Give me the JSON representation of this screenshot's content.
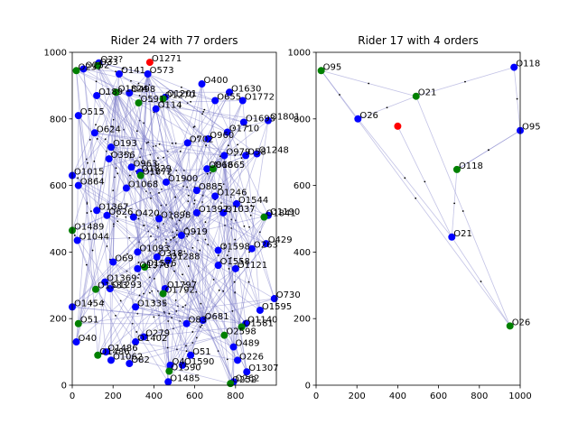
{
  "colors": {
    "route": "#7b7bc8",
    "order": "#0000ff",
    "drop": "#008000",
    "rider": "#ff0000",
    "axis": "#000000"
  },
  "chart_data": [
    {
      "type": "scatter",
      "title": "Rider 24 with 77 orders",
      "xlim": [
        0,
        1000
      ],
      "ylim": [
        0,
        1000
      ],
      "xticks": [
        "0",
        "200",
        "400",
        "600",
        "800"
      ],
      "yticks": [
        "0",
        "200",
        "400",
        "600",
        "800",
        "1000"
      ],
      "rider": {
        "x": 380,
        "y": 970,
        "label": "O1271"
      },
      "points": [
        {
          "x": 130,
          "y": 968,
          "label": "O2??"
        },
        {
          "x": 55,
          "y": 950,
          "label": "O252"
        },
        {
          "x": 230,
          "y": 935,
          "label": "O141"
        },
        {
          "x": 370,
          "y": 935,
          "label": "O573"
        },
        {
          "x": 120,
          "y": 870,
          "label": "O189"
        },
        {
          "x": 280,
          "y": 878,
          "label": "O498"
        },
        {
          "x": 455,
          "y": 865,
          "label": "O1201"
        },
        {
          "x": 410,
          "y": 830,
          "label": "O114"
        },
        {
          "x": 635,
          "y": 905,
          "label": "O400"
        },
        {
          "x": 770,
          "y": 880,
          "label": "O1630"
        },
        {
          "x": 700,
          "y": 855,
          "label": "O655"
        },
        {
          "x": 835,
          "y": 855,
          "label": "O1772"
        },
        {
          "x": 30,
          "y": 810,
          "label": "O515"
        },
        {
          "x": 960,
          "y": 795,
          "label": "O1801"
        },
        {
          "x": 840,
          "y": 790,
          "label": "O1693"
        },
        {
          "x": 760,
          "y": 760,
          "label": "O1710"
        },
        {
          "x": 110,
          "y": 758,
          "label": "O624"
        },
        {
          "x": 665,
          "y": 740,
          "label": "O960"
        },
        {
          "x": 565,
          "y": 728,
          "label": "O702"
        },
        {
          "x": 190,
          "y": 715,
          "label": "O193"
        },
        {
          "x": 905,
          "y": 695,
          "label": "O1248"
        },
        {
          "x": 850,
          "y": 690,
          "label": "O58"
        },
        {
          "x": 745,
          "y": 690,
          "label": "O979"
        },
        {
          "x": 180,
          "y": 680,
          "label": "O356"
        },
        {
          "x": 290,
          "y": 655,
          "label": "O963"
        },
        {
          "x": 330,
          "y": 640,
          "label": "O1829"
        },
        {
          "x": 660,
          "y": 650,
          "label": "O868"
        },
        {
          "x": 0,
          "y": 630,
          "label": "O1015"
        },
        {
          "x": 460,
          "y": 610,
          "label": "O1900"
        },
        {
          "x": 30,
          "y": 600,
          "label": "O864"
        },
        {
          "x": 265,
          "y": 592,
          "label": "O1068"
        },
        {
          "x": 610,
          "y": 585,
          "label": "O885"
        },
        {
          "x": 700,
          "y": 568,
          "label": "O1246"
        },
        {
          "x": 805,
          "y": 545,
          "label": "O1544"
        },
        {
          "x": 120,
          "y": 525,
          "label": "O1367"
        },
        {
          "x": 610,
          "y": 518,
          "label": "O1392"
        },
        {
          "x": 740,
          "y": 518,
          "label": "O1037"
        },
        {
          "x": 960,
          "y": 510,
          "label": "O1190"
        },
        {
          "x": 170,
          "y": 510,
          "label": "O626"
        },
        {
          "x": 300,
          "y": 505,
          "label": "O420"
        },
        {
          "x": 425,
          "y": 500,
          "label": "O1898"
        },
        {
          "x": 535,
          "y": 450,
          "label": "O919"
        },
        {
          "x": 25,
          "y": 435,
          "label": "O1044"
        },
        {
          "x": 950,
          "y": 425,
          "label": "O429"
        },
        {
          "x": 880,
          "y": 410,
          "label": "O263"
        },
        {
          "x": 320,
          "y": 400,
          "label": "O1093"
        },
        {
          "x": 715,
          "y": 405,
          "label": "O1598"
        },
        {
          "x": 415,
          "y": 385,
          "label": "O318"
        },
        {
          "x": 470,
          "y": 375,
          "label": "O1288"
        },
        {
          "x": 200,
          "y": 370,
          "label": "O69"
        },
        {
          "x": 320,
          "y": 350,
          "label": "O1376"
        },
        {
          "x": 800,
          "y": 350,
          "label": "O1121"
        },
        {
          "x": 715,
          "y": 360,
          "label": "O1558"
        },
        {
          "x": 160,
          "y": 310,
          "label": "O1369"
        },
        {
          "x": 185,
          "y": 290,
          "label": "O1293"
        },
        {
          "x": 455,
          "y": 290,
          "label": "O1797"
        },
        {
          "x": 990,
          "y": 260,
          "label": "O730"
        },
        {
          "x": 0,
          "y": 235,
          "label": "O1454"
        },
        {
          "x": 310,
          "y": 235,
          "label": "O1335"
        },
        {
          "x": 920,
          "y": 225,
          "label": "O1595"
        },
        {
          "x": 640,
          "y": 195,
          "label": "O681"
        },
        {
          "x": 560,
          "y": 185,
          "label": "O83"
        },
        {
          "x": 850,
          "y": 185,
          "label": "O1140"
        },
        {
          "x": 350,
          "y": 145,
          "label": "O279"
        },
        {
          "x": 310,
          "y": 130,
          "label": "O1402"
        },
        {
          "x": 20,
          "y": 130,
          "label": "O40"
        },
        {
          "x": 790,
          "y": 115,
          "label": "O489"
        },
        {
          "x": 165,
          "y": 100,
          "label": "O1486"
        },
        {
          "x": 580,
          "y": 90,
          "label": "O51"
        },
        {
          "x": 190,
          "y": 75,
          "label": "O1062"
        },
        {
          "x": 280,
          "y": 65,
          "label": "O82"
        },
        {
          "x": 810,
          "y": 75,
          "label": "O226"
        },
        {
          "x": 480,
          "y": 60,
          "label": "O4"
        },
        {
          "x": 540,
          "y": 60,
          "label": "O1590"
        },
        {
          "x": 855,
          "y": 40,
          "label": "O1307"
        },
        {
          "x": 470,
          "y": 10,
          "label": "O1485"
        },
        {
          "x": 790,
          "y": 10,
          "label": "O262"
        }
      ],
      "drops": [
        {
          "x": 20,
          "y": 945,
          "label": "O257"
        },
        {
          "x": 125,
          "y": 960,
          "label": "O33"
        },
        {
          "x": 215,
          "y": 880,
          "label": "O1824"
        },
        {
          "x": 325,
          "y": 848,
          "label": "O591"
        },
        {
          "x": 445,
          "y": 860,
          "label": "O1270"
        },
        {
          "x": 335,
          "y": 630,
          "label": "O1872"
        },
        {
          "x": 690,
          "y": 650,
          "label": "O1665"
        },
        {
          "x": 0,
          "y": 465,
          "label": "O1489"
        },
        {
          "x": 940,
          "y": 505,
          "label": "O1841"
        },
        {
          "x": 355,
          "y": 355,
          "label": "O1576"
        },
        {
          "x": 115,
          "y": 288,
          "label": "O1533"
        },
        {
          "x": 445,
          "y": 275,
          "label": "O1792"
        },
        {
          "x": 30,
          "y": 185,
          "label": "O51"
        },
        {
          "x": 830,
          "y": 175,
          "label": "O1581"
        },
        {
          "x": 745,
          "y": 150,
          "label": "O2598"
        },
        {
          "x": 125,
          "y": 90,
          "label": "O1486"
        },
        {
          "x": 475,
          "y": 42,
          "label": "O1590"
        },
        {
          "x": 775,
          "y": 5,
          "label": "O252"
        }
      ]
    },
    {
      "type": "scatter",
      "title": "Rider 17 with 4 orders",
      "xlim": [
        0,
        1000
      ],
      "ylim": [
        0,
        1000
      ],
      "xticks": [
        "0",
        "200",
        "400",
        "600",
        "800",
        "1000"
      ],
      "yticks": [
        "0",
        "200",
        "400",
        "600",
        "800",
        "1000"
      ],
      "rider": {
        "x": 400,
        "y": 778,
        "label": ""
      },
      "points": [
        {
          "x": 970,
          "y": 955,
          "label": "O118"
        },
        {
          "x": 205,
          "y": 800,
          "label": "O26"
        },
        {
          "x": 1000,
          "y": 765,
          "label": "O95"
        },
        {
          "x": 665,
          "y": 445,
          "label": "O21"
        }
      ],
      "drops": [
        {
          "x": 25,
          "y": 945,
          "label": "O95"
        },
        {
          "x": 490,
          "y": 868,
          "label": "O21"
        },
        {
          "x": 690,
          "y": 648,
          "label": "O118"
        },
        {
          "x": 950,
          "y": 178,
          "label": "O26"
        }
      ],
      "routes": [
        [
          25,
          945,
          490,
          868
        ],
        [
          490,
          868,
          970,
          955
        ],
        [
          970,
          955,
          1000,
          765
        ],
        [
          1000,
          765,
          690,
          648
        ],
        [
          690,
          648,
          665,
          445
        ],
        [
          665,
          445,
          950,
          178
        ],
        [
          205,
          800,
          490,
          868
        ],
        [
          205,
          800,
          665,
          445
        ],
        [
          25,
          945,
          950,
          178
        ],
        [
          400,
          778,
          665,
          445
        ],
        [
          490,
          868,
          950,
          178
        ],
        [
          205,
          800,
          25,
          945
        ],
        [
          690,
          648,
          1000,
          765
        ]
      ]
    }
  ]
}
